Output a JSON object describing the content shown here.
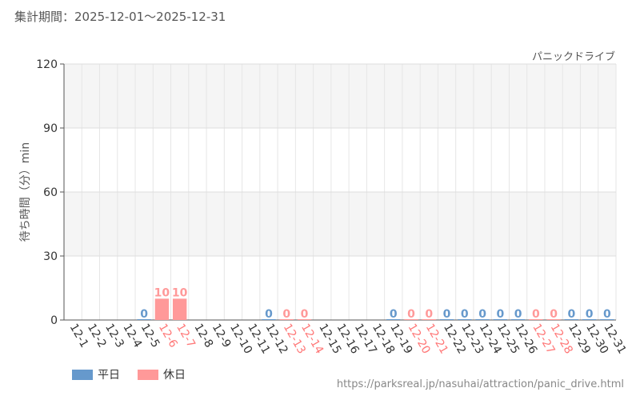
{
  "header": {
    "period_label": "集計期間：2025-12-01～2025-12-31",
    "attraction": "パニックドライブ"
  },
  "legend": {
    "weekday_label": "平日",
    "holiday_label": "休日"
  },
  "source_url": "https://parksreal.jp/nasuhai/attraction/panic_drive.html",
  "colors": {
    "weekday": "#6699cc",
    "holiday": "#ff9999",
    "weekday_text": "#333333",
    "holiday_text": "#ff7777"
  },
  "chart_data": {
    "type": "bar",
    "ylabel": "待ち時間（分）min",
    "ylim": [
      0,
      120
    ],
    "yticks": [
      0,
      30,
      60,
      90,
      120
    ],
    "grid": true,
    "legend_position": "bottom-left",
    "categories": [
      "12-1",
      "12-2",
      "12-3",
      "12-4",
      "12-5",
      "12-6",
      "12-7",
      "12-8",
      "12-9",
      "12-10",
      "12-11",
      "12-12",
      "12-13",
      "12-14",
      "12-15",
      "12-16",
      "12-17",
      "12-18",
      "12-19",
      "12-20",
      "12-21",
      "12-22",
      "12-23",
      "12-24",
      "12-25",
      "12-26",
      "12-27",
      "12-28",
      "12-29",
      "12-30",
      "12-31"
    ],
    "day_types": [
      "weekday",
      "weekday",
      "weekday",
      "weekday",
      "weekday",
      "holiday",
      "holiday",
      "weekday",
      "weekday",
      "weekday",
      "weekday",
      "weekday",
      "holiday",
      "holiday",
      "weekday",
      "weekday",
      "weekday",
      "weekday",
      "weekday",
      "holiday",
      "holiday",
      "weekday",
      "weekday",
      "weekday",
      "weekday",
      "weekday",
      "holiday",
      "holiday",
      "weekday",
      "weekday",
      "weekday"
    ],
    "values": [
      null,
      null,
      null,
      null,
      0,
      10,
      10,
      null,
      null,
      null,
      null,
      0,
      0,
      0,
      null,
      null,
      null,
      null,
      0,
      0,
      0,
      0,
      0,
      0,
      0,
      0,
      0,
      0,
      0,
      0,
      0
    ]
  }
}
